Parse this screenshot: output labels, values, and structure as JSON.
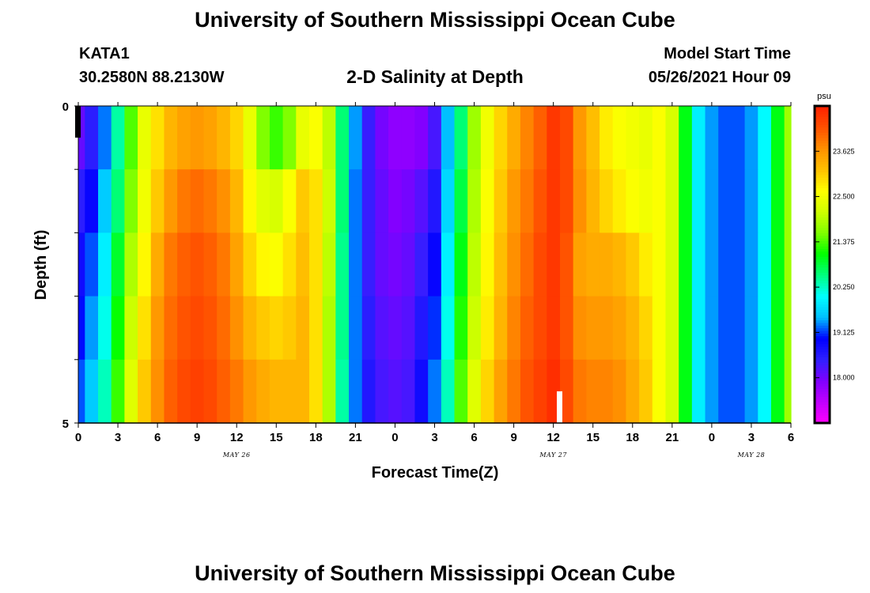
{
  "header": {
    "title": "University of Southern Mississippi Ocean Cube",
    "station": "KATA1",
    "coords": "30.2580N  88.2130W",
    "subtitle": "2-D Salinity at Depth",
    "start_label": "Model Start Time",
    "start_value": "05/26/2021 Hour 09"
  },
  "footer": {
    "title": "University of Southern Mississippi Ocean Cube"
  },
  "chart_data": {
    "type": "heatmap",
    "title": "2-D Salinity at Depth",
    "xlabel": "Forecast Time(Z)",
    "ylabel": "Depth (ft)",
    "x_range_hours": [
      0,
      54
    ],
    "y_range": [
      0,
      5
    ],
    "y_ticks": [
      "0",
      "5"
    ],
    "x_tick_labels": [
      "0",
      "3",
      "6",
      "9",
      "12",
      "15",
      "18",
      "21",
      "0",
      "3",
      "6",
      "9",
      "12",
      "15",
      "18",
      "21",
      "0",
      "3",
      "6"
    ],
    "date_labels": [
      {
        "text": "MAY 26",
        "hour": 12
      },
      {
        "text": "MAY 27",
        "hour": 36
      },
      {
        "text": "MAY 28",
        "hour": 51
      }
    ],
    "colorbar": {
      "unit": "psu",
      "min": 16.875,
      "max": 24.75,
      "tick_labels": [
        "18.000",
        "19.125",
        "20.250",
        "21.375",
        "22.500",
        "23.625"
      ],
      "tick_values": [
        18.0,
        19.125,
        20.25,
        21.375,
        22.5,
        23.625
      ],
      "colors": [
        "#ff00ff",
        "#c000ff",
        "#8000ff",
        "#3020ff",
        "#0000ff",
        "#00c0ff",
        "#00ffff",
        "#00ff80",
        "#00ff00",
        "#80ff00",
        "#d0ff00",
        "#ffff00",
        "#ffc000",
        "#ff9000",
        "#ff5000",
        "#ff2000"
      ]
    },
    "depth_layers": [
      0,
      1,
      2,
      3,
      4
    ],
    "time_hours": [
      0,
      1,
      2,
      3,
      4,
      5,
      6,
      7,
      8,
      9,
      10,
      11,
      12,
      13,
      14,
      15,
      16,
      17,
      18,
      19,
      20,
      21,
      22,
      23,
      24,
      25,
      26,
      27,
      28,
      29,
      30,
      31,
      32,
      33,
      34,
      35,
      36,
      37,
      38,
      39,
      40,
      41,
      42,
      43,
      44,
      45,
      46,
      47,
      48,
      49,
      50,
      51,
      52,
      53,
      54
    ],
    "salinity_psu": [
      [
        18.1,
        18.5,
        19.3,
        20.4,
        21.4,
        22.4,
        22.9,
        23.3,
        23.5,
        23.6,
        23.5,
        23.3,
        23.0,
        22.4,
        21.6,
        21.3,
        21.6,
        22.4,
        22.6,
        22.0,
        20.6,
        19.4,
        18.4,
        18.0,
        17.8,
        17.8,
        17.9,
        18.3,
        19.5,
        20.6,
        21.8,
        22.5,
        23.0,
        23.4,
        23.8,
        24.1,
        24.5,
        24.3,
        23.6,
        23.2,
        22.8,
        22.6,
        22.5,
        22.4,
        22.6,
        22.2,
        21.0,
        19.9,
        19.4,
        19.2,
        19.2,
        19.4,
        20.0,
        21.0,
        21.8
      ],
      [
        18.5,
        18.9,
        19.6,
        20.6,
        21.6,
        22.5,
        23.1,
        23.6,
        23.9,
        24.0,
        23.9,
        23.7,
        23.3,
        22.7,
        22.3,
        22.2,
        22.6,
        23.1,
        22.9,
        22.1,
        20.6,
        19.3,
        18.4,
        18.1,
        17.9,
        18.0,
        18.2,
        18.6,
        19.7,
        20.8,
        21.9,
        22.6,
        23.1,
        23.6,
        23.9,
        24.2,
        24.5,
        24.3,
        23.7,
        23.3,
        23.0,
        22.8,
        22.6,
        22.5,
        22.6,
        22.2,
        21.0,
        19.9,
        19.4,
        19.2,
        19.2,
        19.4,
        20.0,
        21.0,
        21.8
      ],
      [
        18.8,
        19.2,
        19.9,
        20.9,
        21.9,
        22.7,
        23.4,
        23.9,
        24.1,
        24.2,
        24.1,
        23.9,
        23.5,
        23.0,
        22.7,
        22.6,
        22.9,
        23.2,
        22.9,
        22.0,
        20.5,
        19.3,
        18.4,
        18.1,
        18.0,
        18.1,
        18.4,
        18.9,
        19.9,
        21.0,
        22.0,
        22.7,
        23.2,
        23.7,
        24.0,
        24.3,
        24.5,
        24.2,
        23.5,
        23.4,
        23.4,
        23.3,
        23.1,
        22.8,
        22.6,
        22.2,
        21.0,
        19.9,
        19.4,
        19.2,
        19.2,
        19.4,
        20.0,
        21.0,
        21.8
      ],
      [
        19.0,
        19.4,
        20.1,
        21.1,
        22.1,
        22.9,
        23.6,
        24.0,
        24.2,
        24.3,
        24.2,
        24.0,
        23.7,
        23.3,
        23.1,
        23.0,
        23.1,
        23.3,
        22.9,
        21.9,
        20.5,
        19.3,
        18.5,
        18.2,
        18.1,
        18.2,
        18.6,
        19.1,
        20.1,
        21.2,
        22.1,
        22.8,
        23.3,
        23.8,
        24.1,
        24.3,
        24.5,
        24.2,
        23.7,
        23.6,
        23.6,
        23.5,
        23.3,
        23.0,
        22.6,
        22.2,
        21.0,
        19.9,
        19.4,
        19.2,
        19.2,
        19.4,
        20.0,
        21.0,
        21.8
      ],
      [
        19.2,
        19.6,
        20.3,
        21.3,
        22.3,
        23.1,
        23.7,
        24.1,
        24.3,
        24.4,
        24.3,
        24.1,
        23.9,
        23.6,
        23.4,
        23.3,
        23.3,
        23.3,
        22.9,
        21.9,
        20.4,
        19.3,
        18.6,
        18.3,
        18.2,
        18.3,
        18.8,
        19.3,
        20.3,
        21.4,
        22.3,
        23.0,
        23.5,
        23.9,
        24.2,
        24.4,
        24.6,
        24.3,
        23.9,
        23.8,
        23.8,
        23.7,
        23.4,
        23.1,
        22.6,
        22.2,
        21.0,
        19.9,
        19.4,
        19.2,
        19.2,
        19.4,
        20.0,
        21.0,
        21.8
      ]
    ],
    "markers": [
      {
        "name": "current-time-marker",
        "hour": 0,
        "depth_from": 0,
        "depth_to": 0.5,
        "color": "#000000"
      },
      {
        "name": "obs-marker",
        "hour": 36.5,
        "depth_from": 4.5,
        "depth_to": 5,
        "color": "#ffffff"
      }
    ]
  }
}
